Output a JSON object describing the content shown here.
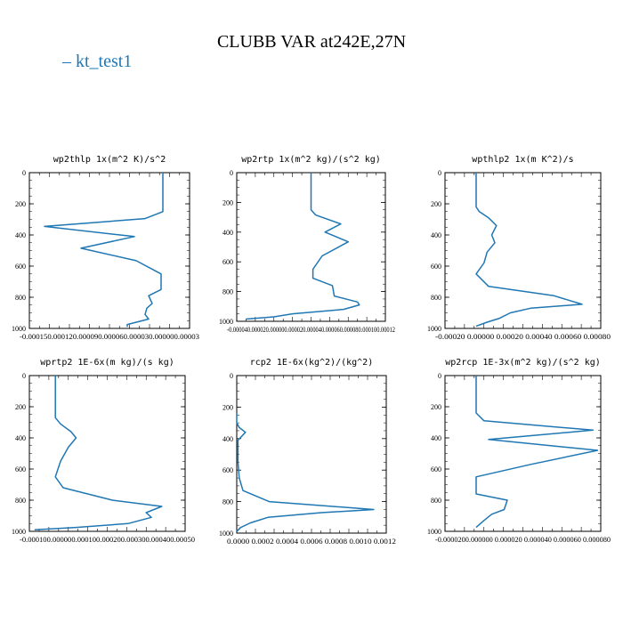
{
  "title": "CLUBB VAR at242E,27N",
  "legend": [
    {
      "label": "kt_test1",
      "color": "#1f77b4"
    }
  ],
  "chart_data": [
    {
      "type": "line",
      "title": "wp2thlp   1x(m^2 K)/s^2",
      "xlim": [
        -0.00015,
        3e-05
      ],
      "xticks": [
        "-0.00015",
        "-0.00012",
        "-0.00009",
        "-0.00006",
        "-0.00003",
        "0.00000",
        "0.00003"
      ],
      "xtick_label": "-0.000150.000120.000090.000060.000030.000000.00003",
      "ylim": [
        0,
        1000
      ],
      "yticks": [
        0,
        200,
        400,
        600,
        800,
        1000
      ],
      "series": [
        {
          "name": "kt_test1",
          "color": "#1f77b4",
          "x": [
            0.0,
            0.0,
            -2e-05,
            -0.000133,
            -3.2e-05,
            -9.2e-05,
            -3e-05,
            -2e-06,
            -2e-06,
            -1.6e-05,
            -1.2e-05,
            -1.8e-05,
            -2e-05,
            -1.6e-05,
            -4e-05,
            -4e-05
          ],
          "y": [
            0,
            250,
            295,
            345,
            410,
            485,
            565,
            650,
            750,
            790,
            840,
            870,
            910,
            940,
            975,
            990
          ]
        }
      ]
    },
    {
      "type": "line",
      "title": "wp2rtp   1x(m^2 kg)/(s^2 kg)",
      "xlim": [
        -4e-05,
        0.00012
      ],
      "xticks": [],
      "xtick_label": "-0.000040.000020.000000.000020.000040.000060.000080.000100.00012",
      "ylim": [
        0,
        1000
      ],
      "yticks": [
        0,
        200,
        400,
        600,
        800,
        1000
      ],
      "series": [
        {
          "name": "kt_test1",
          "color": "#1f77b4",
          "x": [
            4e-05,
            4e-05,
            4.5e-05,
            7.2e-05,
            5.5e-05,
            8e-05,
            5.2e-05,
            4.2e-05,
            4.2e-05,
            6.3e-05,
            6.5e-05,
            9e-05,
            9.2e-05,
            7.5e-05,
            2e-05,
            0.0,
            -3e-05
          ],
          "y": [
            0,
            250,
            285,
            345,
            400,
            465,
            560,
            650,
            710,
            760,
            830,
            870,
            890,
            920,
            950,
            970,
            985
          ]
        }
      ]
    },
    {
      "type": "line",
      "title": "wpthlp2   1x(m K^2)/s",
      "xlim": [
        -0.0002,
        0.0008
      ],
      "xticks": [
        "-0.00020",
        "0.00000",
        "0.00020",
        "0.00040",
        "0.00060",
        "0.00080"
      ],
      "xtick_label": "-0.00020 0.00000 0.00020 0.00040 0.00060 0.00080",
      "ylim": [
        0,
        1000
      ],
      "yticks": [
        0,
        200,
        400,
        600,
        800,
        1000
      ],
      "series": [
        {
          "name": "kt_test1",
          "color": "#1f77b4",
          "x": [
            0.0,
            0.0,
            2e-05,
            8e-05,
            0.00013,
            0.0001,
            0.00012,
            7e-05,
            5e-05,
            0.0,
            8e-05,
            0.0005,
            0.00068,
            0.00035,
            0.00022,
            0.00015,
            7e-05,
            0.0
          ],
          "y": [
            0,
            220,
            250,
            290,
            340,
            400,
            450,
            510,
            580,
            650,
            730,
            790,
            845,
            870,
            900,
            935,
            960,
            985
          ]
        }
      ]
    },
    {
      "type": "line",
      "title": "wprtp2   1E-6x(m kg)/(s kg)",
      "xlim": [
        -0.0001,
        0.0005
      ],
      "xticks": [
        "-0.00010",
        "0.00000",
        "0.00010",
        "0.00020",
        "0.00030",
        "0.00040",
        "0.00050"
      ],
      "xtick_label": "-0.000100.000000.000100.000200.000300.000400.00050",
      "ylim": [
        0,
        1000
      ],
      "yticks": [
        0,
        200,
        400,
        600,
        800,
        1000
      ],
      "series": [
        {
          "name": "kt_test1",
          "color": "#1f77b4",
          "x": [
            0.0,
            0.0,
            2e-05,
            6e-05,
            8e-05,
            5e-05,
            2e-05,
            0.0,
            3e-05,
            0.00022,
            0.00041,
            0.00035,
            0.00037,
            0.00028,
            8e-05,
            -8e-05
          ],
          "y": [
            0,
            270,
            310,
            360,
            400,
            460,
            550,
            650,
            720,
            800,
            840,
            880,
            910,
            950,
            975,
            990
          ]
        }
      ]
    },
    {
      "type": "line",
      "title": "rcp2   1E-6x(kg^2)/(kg^2)",
      "xlim": [
        0.0,
        0.0012
      ],
      "xticks": [
        "0.0000",
        "0.0002",
        "0.0004",
        "0.0006",
        "0.0008",
        "0.0010",
        "0.0012"
      ],
      "xtick_label": "0.0000  0.0002  0.0004  0.0006  0.0008  0.0010  0.0012",
      "ylim": [
        0,
        1000
      ],
      "yticks": [
        0,
        200,
        400,
        600,
        800,
        1000
      ],
      "series": [
        {
          "name": "kt_test1",
          "color": "#1f77b4",
          "x": [
            0.0,
            0.0,
            2e-05,
            7e-05,
            1e-05,
            1e-05,
            2e-05,
            5e-05,
            0.00026,
            0.0011,
            0.00068,
            0.00025,
            0.00011,
            3e-05,
            0.0
          ],
          "y": [
            240,
            300,
            330,
            360,
            410,
            550,
            650,
            730,
            800,
            850,
            870,
            900,
            935,
            965,
            990
          ]
        }
      ]
    },
    {
      "type": "line",
      "title": "wp2rcp   1E-3x(m^2 kg)/(s^2 kg)",
      "xlim": [
        -2e-05,
        8e-05
      ],
      "xticks": [
        "-0.000020",
        "0.000000",
        "0.000020",
        "0.000040",
        "0.000060",
        "0.000080"
      ],
      "xtick_label": "-0.0000200.000000 0.000020 0.000040 0.000060 0.000080",
      "ylim": [
        0,
        1000
      ],
      "yticks": [
        0,
        200,
        400,
        600,
        800,
        1000
      ],
      "series": [
        {
          "name": "kt_test1",
          "color": "#1f77b4",
          "x": [
            0.0,
            0.0,
            5e-06,
            7.5e-05,
            8e-06,
            7.8e-05,
            3.5e-05,
            0.0,
            0.0,
            0.0,
            2e-05,
            1.8e-05,
            1e-05,
            5e-06,
            0.0
          ],
          "y": [
            0,
            240,
            290,
            350,
            410,
            480,
            570,
            650,
            730,
            760,
            800,
            860,
            890,
            930,
            975
          ]
        }
      ]
    }
  ]
}
